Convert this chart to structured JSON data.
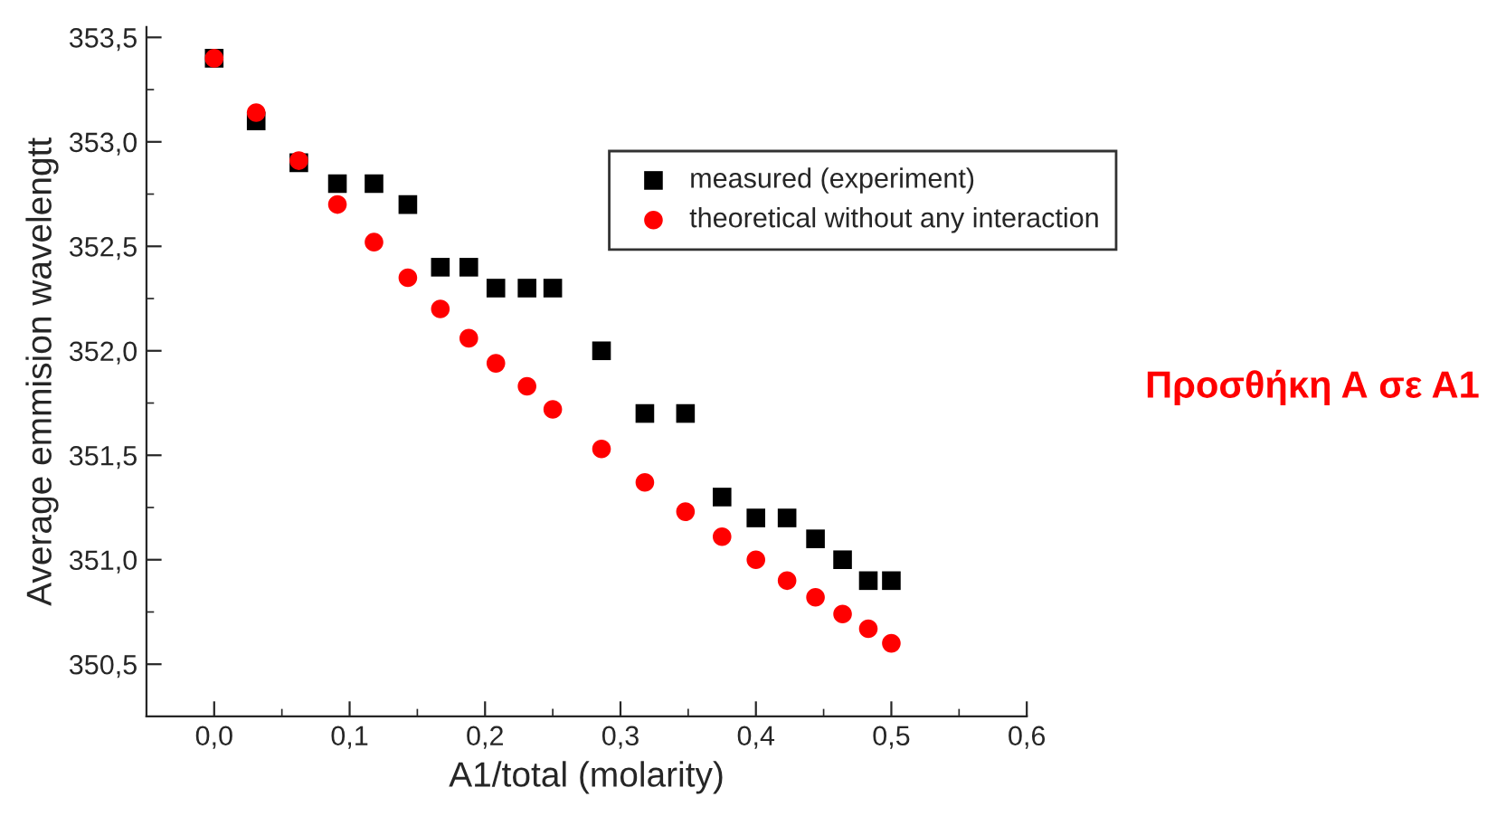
{
  "chart_data": {
    "type": "scatter",
    "xlabel": "A1/total (molarity)",
    "ylabel": "Average emmision wavelengtt",
    "xlim": [
      -0.05,
      0.6
    ],
    "ylim": [
      350.25,
      353.55
    ],
    "xticks": [
      {
        "value": 0.0,
        "label": "0,0"
      },
      {
        "value": 0.1,
        "label": "0,1"
      },
      {
        "value": 0.2,
        "label": "0,2"
      },
      {
        "value": 0.3,
        "label": "0,3"
      },
      {
        "value": 0.4,
        "label": "0,4"
      },
      {
        "value": 0.5,
        "label": "0,5"
      },
      {
        "value": 0.6,
        "label": "0,6"
      }
    ],
    "yticks": [
      {
        "value": 350.5,
        "label": "350,5"
      },
      {
        "value": 351.0,
        "label": "351,0"
      },
      {
        "value": 351.5,
        "label": "351,5"
      },
      {
        "value": 352.0,
        "label": "352,0"
      },
      {
        "value": 352.5,
        "label": "352,5"
      },
      {
        "value": 353.0,
        "label": "353,0"
      },
      {
        "value": 353.5,
        "label": "353,5"
      }
    ],
    "x": [
      0,
      0.031,
      0.0625,
      0.091,
      0.118,
      0.143,
      0.167,
      0.188,
      0.208,
      0.231,
      0.25,
      0.286,
      0.318,
      0.348,
      0.375,
      0.4,
      0.423,
      0.444,
      0.464,
      0.483,
      0.5
    ],
    "series": [
      {
        "name": "measured (experiment)",
        "color": "#000000",
        "marker": "square",
        "values": [
          353.4,
          353.1,
          352.9,
          352.8,
          352.8,
          352.7,
          352.4,
          352.4,
          352.3,
          352.3,
          352.3,
          352.0,
          351.7,
          351.7,
          351.3,
          351.2,
          351.2,
          351.1,
          351.0,
          350.9,
          350.9
        ]
      },
      {
        "name": "theoretical without any interaction",
        "color": "#ff0000",
        "marker": "circle",
        "values": [
          353.4,
          353.14,
          352.91,
          352.7,
          352.52,
          352.35,
          352.2,
          352.06,
          351.94,
          351.83,
          351.72,
          351.53,
          351.37,
          351.23,
          351.11,
          351.0,
          350.9,
          350.82,
          350.74,
          350.67,
          350.6
        ]
      }
    ],
    "legend": "top right",
    "grid": false,
    "annotations": [
      "Προσθήκη Α σε Α1"
    ]
  }
}
